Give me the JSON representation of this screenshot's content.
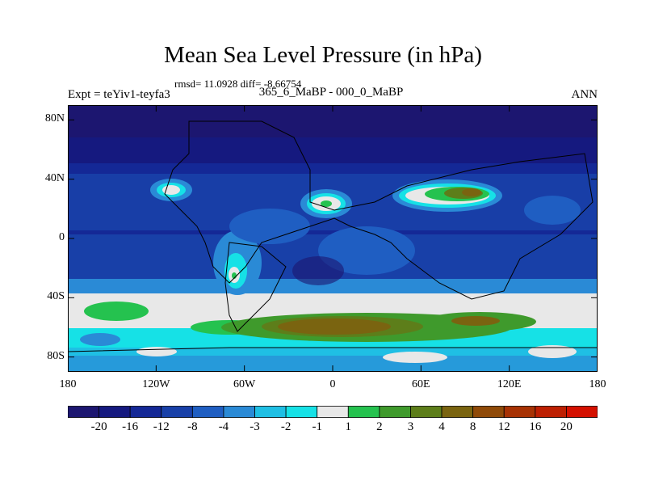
{
  "title": "Mean Sea Level Pressure (in hPa)",
  "stats": "rmsd= 11.0928 diff= -8.66754",
  "experiment": "Expt = teYiv1-teyfa3",
  "subtitle": "365_6_MaBP - 000_0_MaBP",
  "season": "ANN",
  "lat_labels": [
    "80N",
    "40N",
    "0",
    "40S",
    "80S"
  ],
  "lat_values": [
    80,
    40,
    0,
    -40,
    -80
  ],
  "lon_labels": [
    "180",
    "120W",
    "60W",
    "0",
    "60E",
    "120E",
    "180"
  ],
  "lon_values": [
    -180,
    -120,
    -60,
    0,
    60,
    120,
    180
  ],
  "colorbar": {
    "colors": [
      "#1c1670",
      "#15197f",
      "#142896",
      "#1840a8",
      "#1f5ec2",
      "#2a8ad6",
      "#1fbfe4",
      "#16e1e6",
      "#e8e8e8",
      "#25c24f",
      "#3f9a2c",
      "#5d7e1a",
      "#7a6410",
      "#8f4a08",
      "#a73204",
      "#bd1f02",
      "#d41000"
    ],
    "labels": [
      "-20",
      "-16",
      "-12",
      "-8",
      "-4",
      "-3",
      "-2",
      "-1",
      "1",
      "2",
      "3",
      "4",
      "8",
      "12",
      "16",
      "20"
    ]
  },
  "map_colors": {
    "deep_low": "#1c1670",
    "low": "#142896",
    "mid_low": "#1f5ec2",
    "light": "#2a8ad6",
    "cyan": "#16e1e6",
    "white": "#e8e8e8",
    "green": "#25c24f",
    "olive": "#5d7e1a",
    "brown": "#7a6410"
  }
}
